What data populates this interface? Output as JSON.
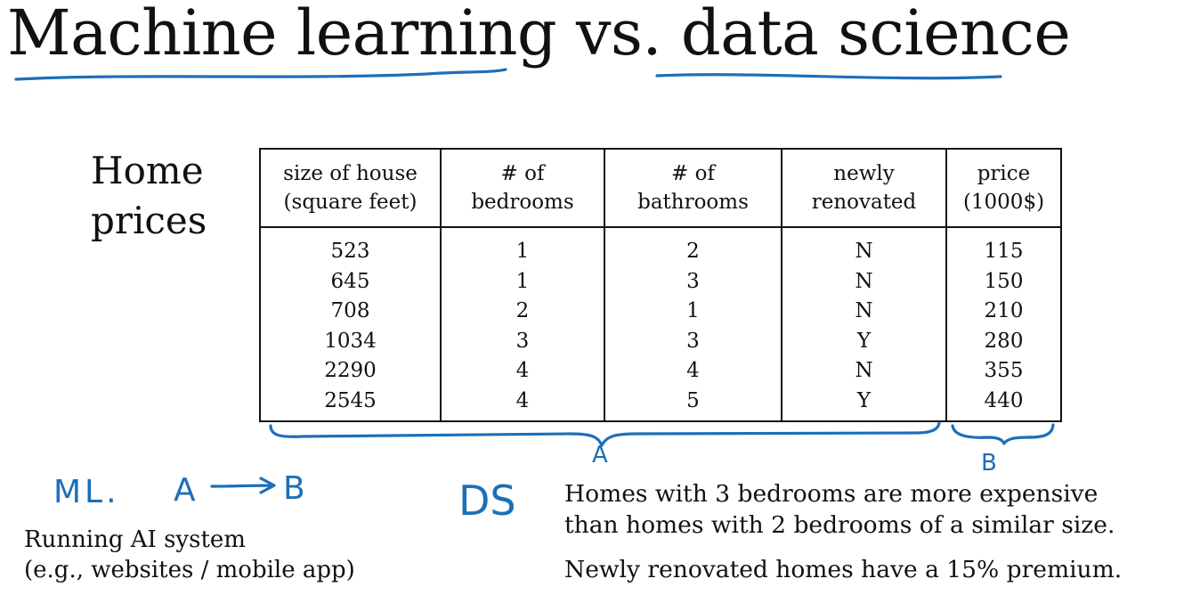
{
  "title": {
    "text": "Machine learning vs. data science"
  },
  "section_label": {
    "line1": "Home",
    "line2": "prices"
  },
  "table": {
    "headers": [
      {
        "line1": "size of house",
        "line2": "(square feet)"
      },
      {
        "line1": "# of",
        "line2": "bedrooms"
      },
      {
        "line1": "# of",
        "line2": "bathrooms"
      },
      {
        "line1": "newly",
        "line2": "renovated"
      },
      {
        "line1": "price",
        "line2": "(1000$)"
      }
    ],
    "rows": [
      [
        "523",
        "1",
        "2",
        "N",
        "115"
      ],
      [
        "645",
        "1",
        "3",
        "N",
        "150"
      ],
      [
        "708",
        "2",
        "1",
        "N",
        "210"
      ],
      [
        "1034",
        "3",
        "3",
        "Y",
        "280"
      ],
      [
        "2290",
        "4",
        "4",
        "N",
        "355"
      ],
      [
        "2545",
        "4",
        "5",
        "Y",
        "440"
      ]
    ]
  },
  "annotations": {
    "brace_a_label": "A",
    "brace_b_label": "B",
    "ml_label": "ML.",
    "ml_input": "A",
    "ml_output": "B",
    "ds_label": "DS",
    "ink_color": "#1c6fb8"
  },
  "ml_caption": {
    "line1": "Running AI system",
    "line2": "(e.g., websites / mobile app)"
  },
  "ds_insights": {
    "insight1_line1": "Homes with 3 bedrooms are more expensive",
    "insight1_line2": "than homes with 2 bedrooms of a similar size.",
    "insight2": "Newly renovated homes have a 15% premium."
  }
}
